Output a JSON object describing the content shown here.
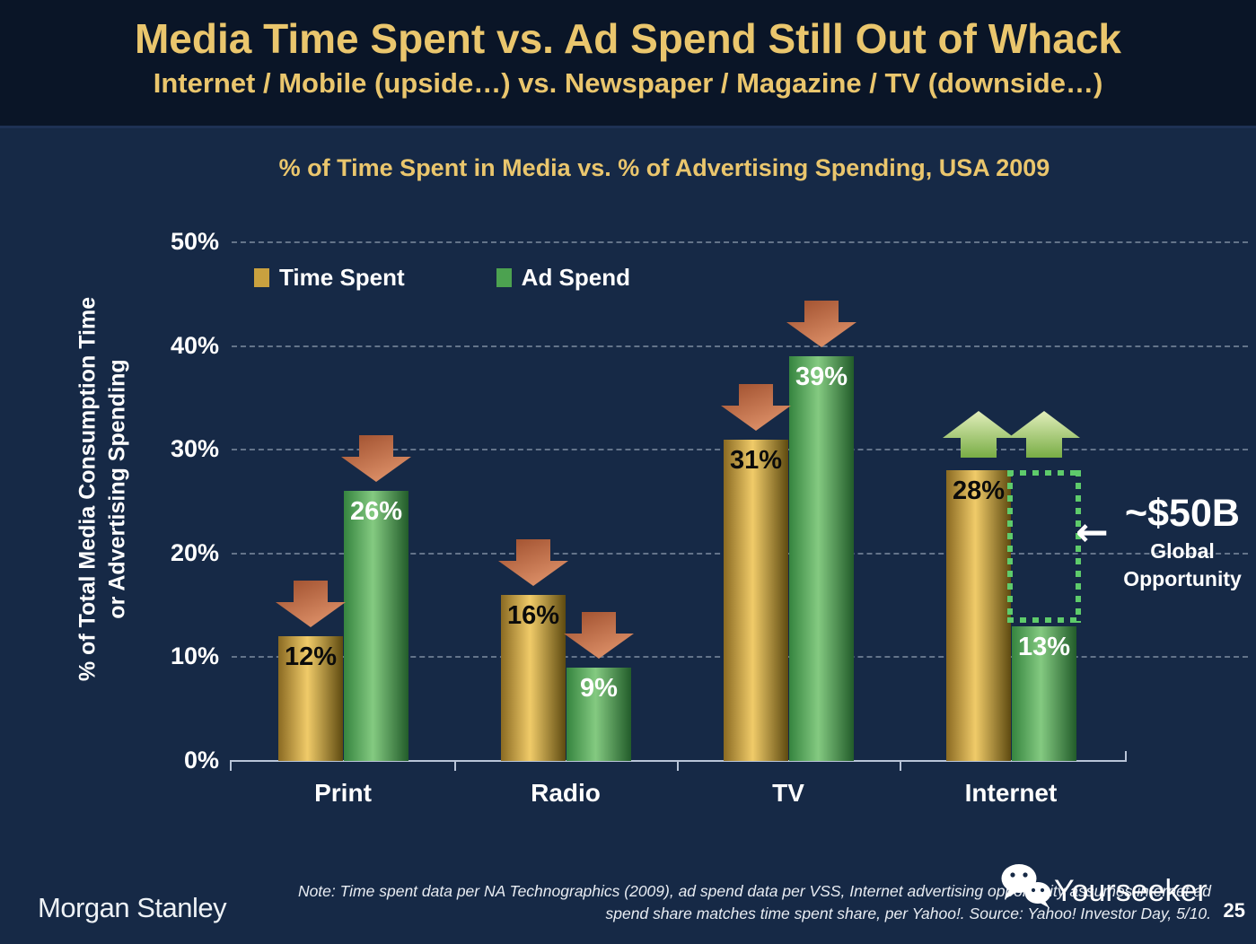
{
  "slide": {
    "title": "Media Time Spent vs. Ad Spend Still Out of Whack",
    "subtitle": "Internet / Mobile (upside…) vs. Newspaper / Magazine / TV (downside…)"
  },
  "chart_data": {
    "type": "bar",
    "title": "% of Time Spent in Media vs. % of Advertising Spending, USA 2009",
    "ylabel": [
      "% of Total Media Consumption Time",
      "or Advertising Spending"
    ],
    "categories": [
      "Print",
      "Radio",
      "TV",
      "Internet"
    ],
    "series": [
      {
        "name": "Time Spent",
        "values": [
          12,
          16,
          31,
          28
        ],
        "legend_swatch": "#c9a13f",
        "color_start": "#8a6a22",
        "color_mid": "#f0cb69",
        "color_end": "#5e4a10",
        "label_color": "#0b0b0b"
      },
      {
        "name": "Ad Spend",
        "values": [
          26,
          9,
          39,
          13
        ],
        "legend_swatch": "#4ca250",
        "color_start": "#35843f",
        "color_mid": "#84ca81",
        "color_end": "#225c2a",
        "label_color": "#ffffff"
      }
    ],
    "value_suffix": "%",
    "ylim": [
      0,
      50
    ],
    "yticks": [
      50,
      40,
      30,
      20,
      10,
      0
    ],
    "ytick_suffix": "%",
    "grid": "horizontal-dashed",
    "legend_position": "top-left-inside",
    "annotations": {
      "down_arrows": [
        {
          "category": "Print",
          "series": 0
        },
        {
          "category": "Print",
          "series": 1
        },
        {
          "category": "Radio",
          "series": 0
        },
        {
          "category": "Radio",
          "series": 1
        },
        {
          "category": "TV",
          "series": 0
        },
        {
          "category": "TV",
          "series": 1
        }
      ],
      "up_arrows": [
        {
          "category": "Internet",
          "series": 0,
          "at_value": 28
        },
        {
          "category": "Internet",
          "series": 1,
          "at_value": 28
        }
      ],
      "opportunity_box": {
        "category": "Internet",
        "series": 1,
        "from_value": 13,
        "to_value": 28
      },
      "opportunity_label": {
        "line1": "~$50B",
        "line2": "Global",
        "line3": "Opportunity"
      },
      "arrow_glyph": "←"
    }
  },
  "footer": {
    "logo": "Morgan Stanley",
    "note_line1": "Note: Time spent data per NA Technographics (2009), ad spend data per VSS, Internet advertising opportunity assumes internet ad",
    "note_line2": "spend share matches time spent share, per Yahoo!. Source: Yahoo! Investor Day, 5/10.",
    "watermark": "Yourseeker",
    "page_number": "25"
  },
  "colors": {
    "header_bg": "#0a1527",
    "body_bg": "#162946",
    "title_gold": "#eac66d",
    "text_white": "#ffffff",
    "gridline": "rgba(185,198,214,0.48)",
    "axis": "#b9c5d8",
    "down_arrow_start": "#9d4d2c",
    "down_arrow_end": "#dd9068",
    "up_arrow_start": "#e2eebb",
    "up_arrow_end": "#78ad45",
    "opportunity_green": "#5ecb6b"
  }
}
